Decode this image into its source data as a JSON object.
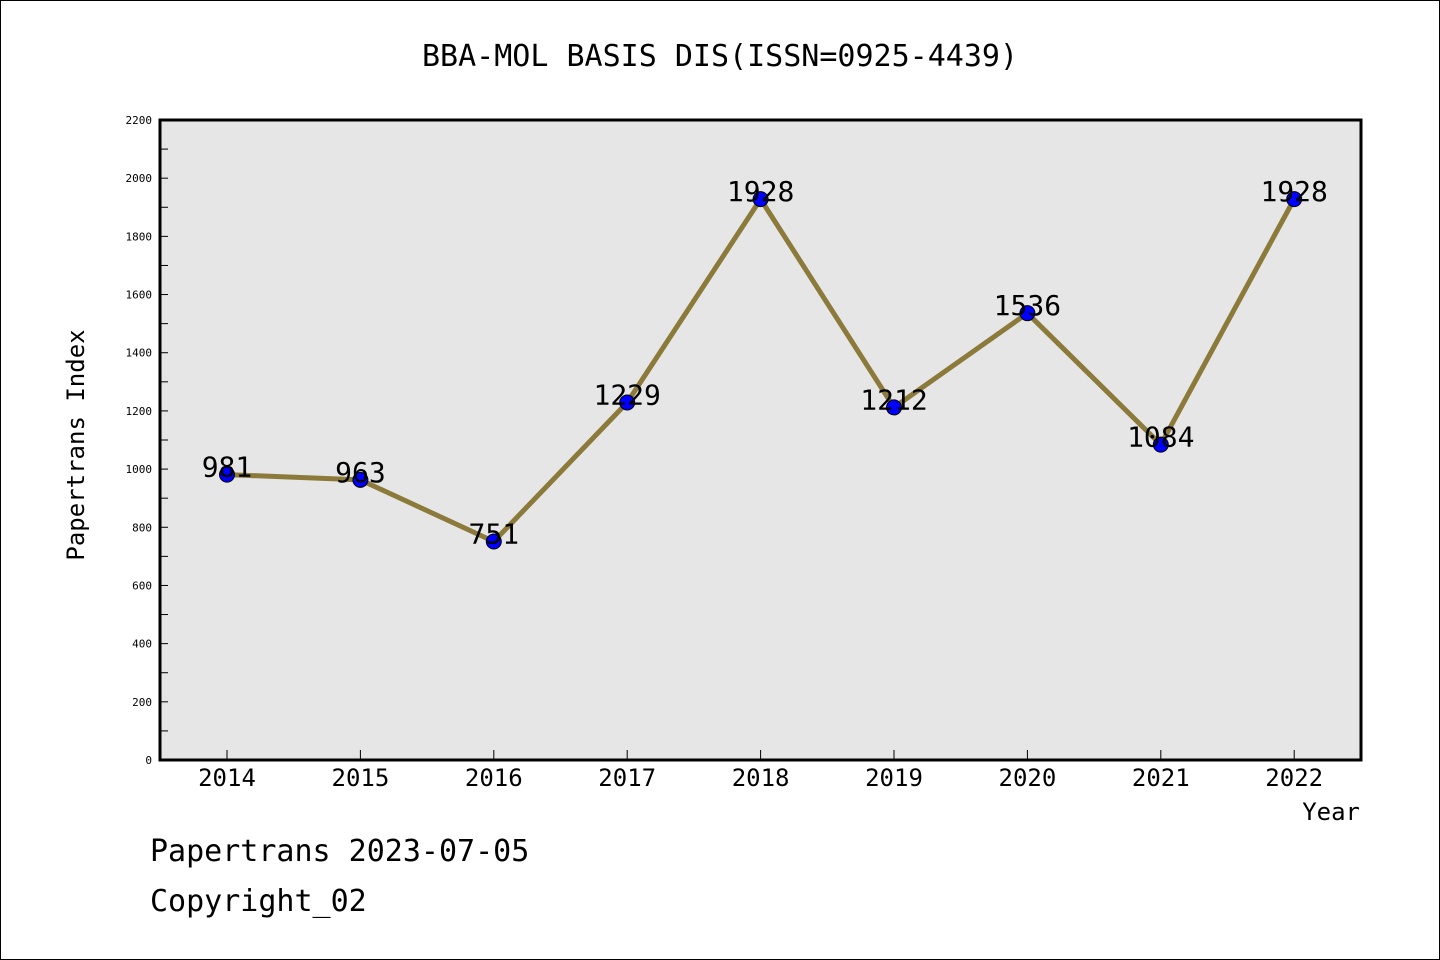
{
  "chart_data": {
    "type": "line",
    "title": "BBA-MOL BASIS DIS(ISSN=0925-4439)",
    "xlabel": "Year",
    "ylabel": "Papertrans Index",
    "categories": [
      "2014",
      "2015",
      "2016",
      "2017",
      "2018",
      "2019",
      "2020",
      "2021",
      "2022"
    ],
    "series": [
      {
        "values": [
          981,
          963,
          751,
          1229,
          1928,
          1212,
          1536,
          1084,
          1928
        ]
      }
    ],
    "data_labels": [
      "981",
      "963",
      "751",
      "1229",
      "1928",
      "1212",
      "1536",
      "1084",
      "1928"
    ],
    "ylim": [
      0,
      2200
    ],
    "y_ticks": [
      "0",
      "200",
      "400",
      "600",
      "800",
      "1000",
      "1200",
      "1400",
      "1600",
      "1800",
      "2000",
      "2200"
    ],
    "grid": false,
    "legend": "none",
    "colors": {
      "line": "#8b7a3a",
      "marker": "#0000ff",
      "plot_background": "#e6e6e6"
    }
  },
  "footer": {
    "line1": "Papertrans 2023-07-05",
    "line2": "Copyright_02"
  }
}
